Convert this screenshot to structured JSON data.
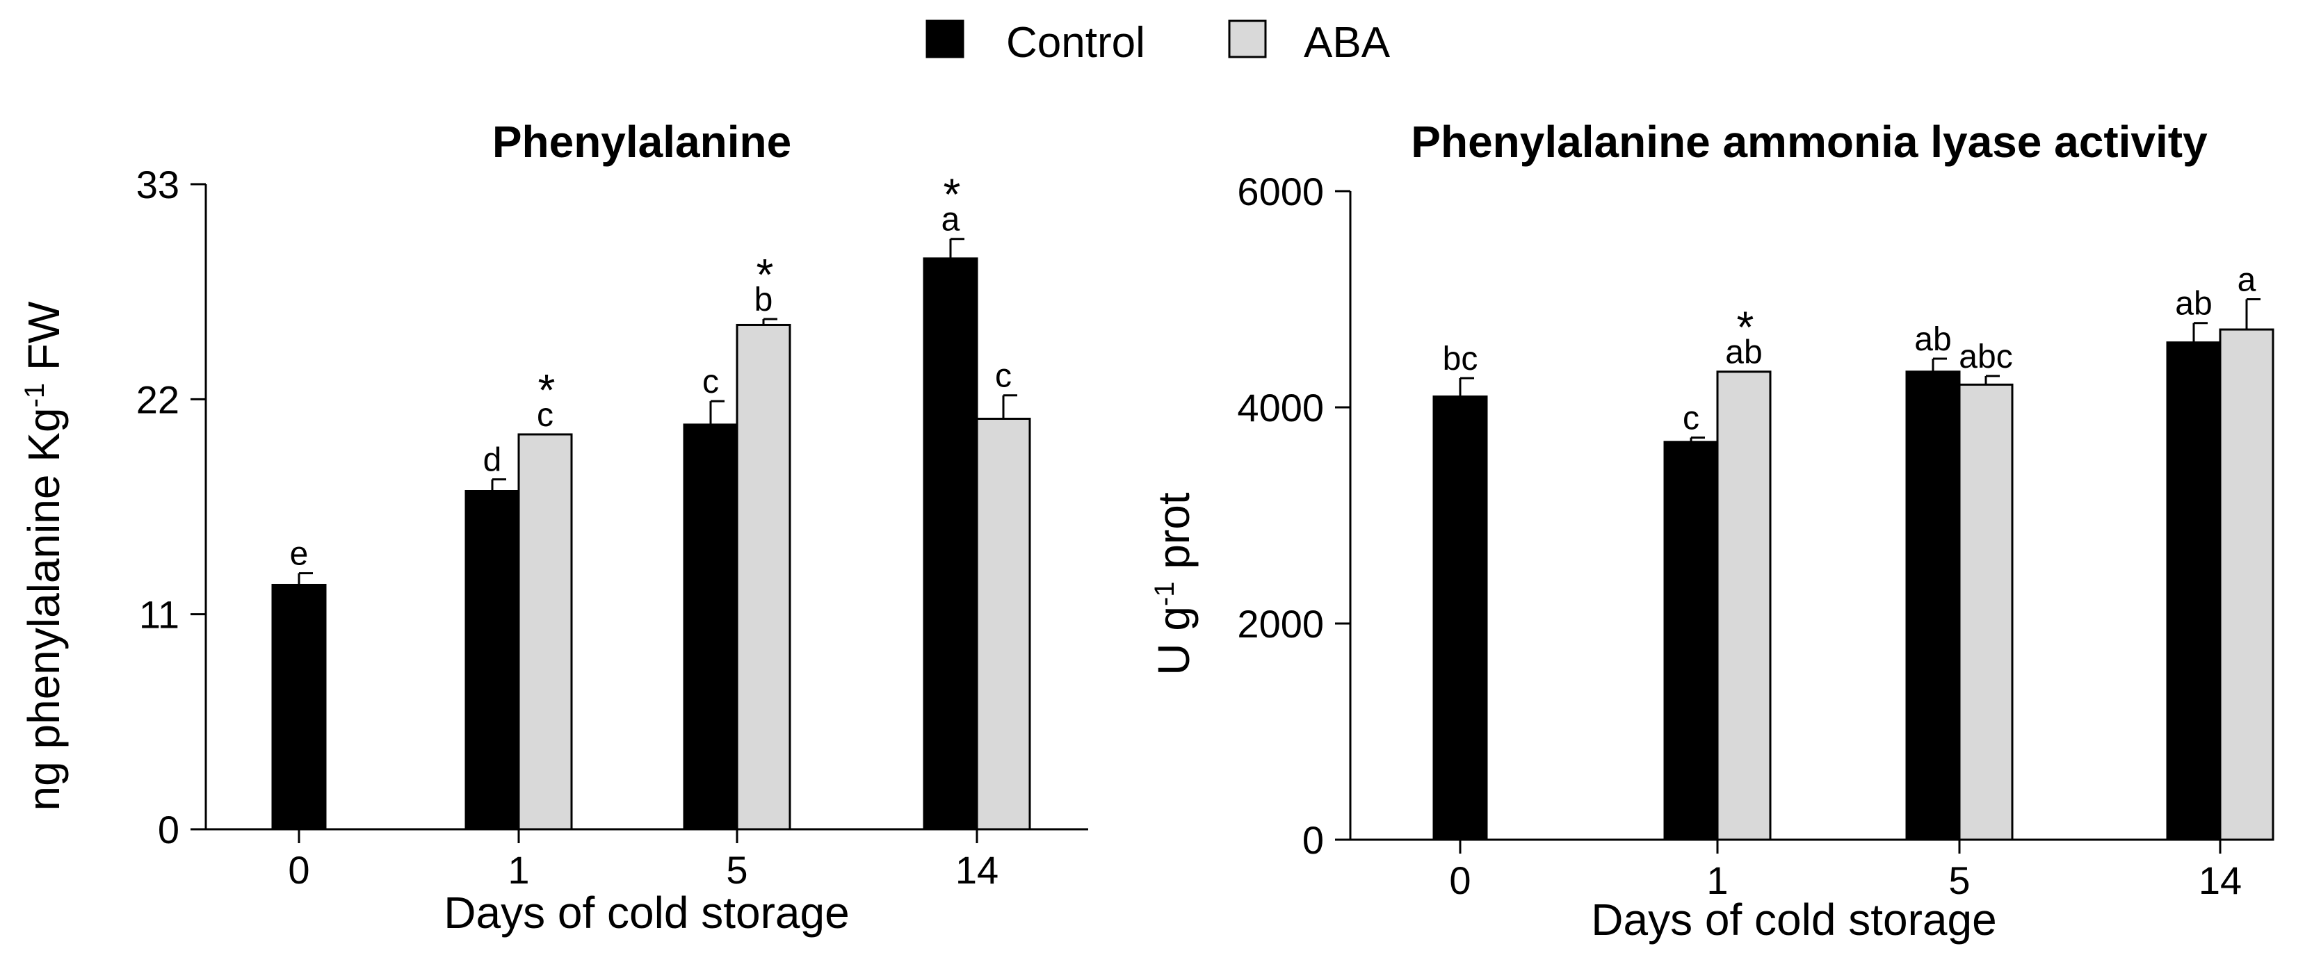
{
  "legend": {
    "items": [
      {
        "label": "Control",
        "color": "#000000"
      },
      {
        "label": "ABA",
        "color": "#d9d9d9"
      }
    ]
  },
  "chart_data": [
    {
      "type": "bar",
      "title": "Phenylalanine",
      "xlabel": "Days of cold storage",
      "ylabel_main": "ng phenylalanine Kg",
      "ylabel_sup": "-1",
      "ylabel_tail": " FW",
      "ylim": [
        0,
        33
      ],
      "yticks": [
        0,
        11,
        22,
        33
      ],
      "categories": [
        "0",
        "1",
        "5",
        "14"
      ],
      "series": [
        {
          "name": "Control",
          "color": "#000000",
          "values": [
            12.5,
            17.3,
            20.7,
            29.2
          ],
          "errors": [
            0.6,
            0.6,
            1.2,
            1.0
          ],
          "letters": [
            "e",
            "d",
            "c",
            "a"
          ],
          "stars": [
            "",
            "",
            "",
            "*"
          ]
        },
        {
          "name": "ABA",
          "color": "#d9d9d9",
          "values": [
            null,
            20.2,
            25.8,
            21.0
          ],
          "errors": [
            null,
            0.0,
            0.3,
            1.2
          ],
          "letters": [
            "",
            "c",
            "b",
            "c"
          ],
          "stars": [
            "",
            "*",
            "*",
            ""
          ]
        }
      ]
    },
    {
      "type": "bar",
      "title": "Phenylalanine ammonia lyase activity",
      "xlabel": "Days of cold storage",
      "ylabel_main": "U g",
      "ylabel_sup": "-1",
      "ylabel_tail": " prot",
      "ylim": [
        0,
        6000
      ],
      "yticks": [
        0,
        2000,
        4000,
        6000
      ],
      "categories": [
        "0",
        "1",
        "5",
        "14"
      ],
      "series": [
        {
          "name": "Control",
          "color": "#000000",
          "values": [
            4100,
            3680,
            4330,
            4600
          ],
          "errors": [
            170,
            40,
            120,
            180
          ],
          "letters": [
            "bc",
            "c",
            "ab",
            "ab"
          ],
          "stars": [
            "",
            "",
            "",
            ""
          ]
        },
        {
          "name": "ABA",
          "color": "#d9d9d9",
          "values": [
            null,
            4330,
            4210,
            4720
          ],
          "errors": [
            null,
            0,
            80,
            280
          ],
          "letters": [
            "",
            "ab",
            "abc",
            "a"
          ],
          "stars": [
            "",
            "*",
            "",
            ""
          ]
        }
      ]
    }
  ]
}
